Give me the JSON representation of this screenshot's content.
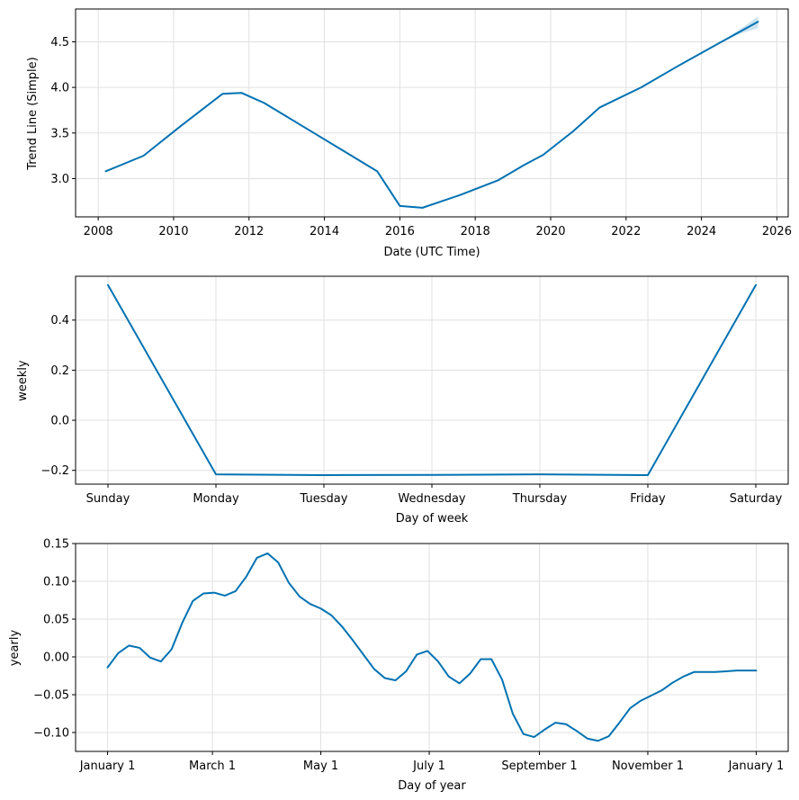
{
  "chart_data": [
    {
      "type": "line",
      "xlabel": "Date (UTC Time)",
      "ylabel": "Trend Line (Simple)",
      "x_ticks": [
        2008,
        2010,
        2012,
        2014,
        2016,
        2018,
        2020,
        2022,
        2024,
        2026
      ],
      "x_tick_labels": [
        "2008",
        "2010",
        "2012",
        "2014",
        "2016",
        "2018",
        "2020",
        "2022",
        "2024",
        "2026"
      ],
      "y_ticks": [
        3.0,
        3.5,
        4.0,
        4.5
      ],
      "y_tick_labels": [
        "3.0",
        "3.5",
        "4.0",
        "4.5"
      ],
      "xlim": [
        2007.4,
        2026.3
      ],
      "ylim": [
        2.58,
        4.86
      ],
      "grid": true,
      "x": [
        2008.2,
        2009.2,
        2010.2,
        2011.3,
        2011.8,
        2012.4,
        2013.4,
        2014.4,
        2015.4,
        2016.0,
        2016.6,
        2017.6,
        2018.6,
        2019.3,
        2019.8,
        2020.6,
        2021.3,
        2022.4,
        2023.4,
        2024.4,
        2025.5
      ],
      "y": [
        3.08,
        3.25,
        3.58,
        3.93,
        3.94,
        3.83,
        3.58,
        3.33,
        3.08,
        2.7,
        2.68,
        2.82,
        2.98,
        3.15,
        3.26,
        3.52,
        3.78,
        4.0,
        4.24,
        4.47,
        4.72
      ],
      "uncertainty": {
        "x": [
          2024.8,
          2025.1,
          2025.5
        ],
        "lower": [
          4.55,
          4.6,
          4.65
        ],
        "upper": [
          4.58,
          4.66,
          4.78
        ]
      }
    },
    {
      "type": "line",
      "xlabel": "Day of week",
      "ylabel": "weekly",
      "categories": [
        "Sunday",
        "Monday",
        "Tuesday",
        "Wednesday",
        "Thursday",
        "Friday",
        "Saturday"
      ],
      "values": [
        0.54,
        -0.216,
        -0.219,
        -0.218,
        -0.216,
        -0.219,
        0.54
      ],
      "y_ticks": [
        -0.2,
        0.0,
        0.2,
        0.4
      ],
      "y_tick_labels": [
        "−0.2",
        "0.0",
        "0.2",
        "0.4"
      ],
      "xlim": [
        -0.3,
        6.3
      ],
      "ylim": [
        -0.255,
        0.575
      ],
      "grid": true
    },
    {
      "type": "line",
      "xlabel": "Day of year",
      "ylabel": "yearly",
      "x_ticks": [
        0,
        59,
        120,
        181,
        243,
        304,
        365
      ],
      "x_tick_labels": [
        "January 1",
        "March 1",
        "May 1",
        "July 1",
        "September 1",
        "November 1",
        "January 1"
      ],
      "y_ticks": [
        -0.1,
        -0.05,
        0.0,
        0.05,
        0.1,
        0.15
      ],
      "y_tick_labels": [
        "−0.10",
        "−0.05",
        "0.00",
        "0.05",
        "0.10",
        "0.15"
      ],
      "xlim": [
        -18,
        383
      ],
      "ylim": [
        -0.125,
        0.15
      ],
      "grid": true,
      "x": [
        0,
        6,
        12,
        18,
        24,
        30,
        36,
        42,
        48,
        54,
        60,
        66,
        72,
        78,
        84,
        90,
        96,
        102,
        108,
        114,
        120,
        126,
        132,
        138,
        144,
        150,
        156,
        162,
        168,
        174,
        180,
        186,
        192,
        198,
        204,
        210,
        216,
        222,
        228,
        234,
        240,
        246,
        252,
        258,
        264,
        270,
        276,
        282,
        288,
        294,
        300,
        306,
        312,
        318,
        324,
        330,
        336,
        342,
        348,
        354,
        360,
        365
      ],
      "y": [
        -0.014,
        0.005,
        0.015,
        0.012,
        -0.001,
        -0.006,
        0.01,
        0.045,
        0.074,
        0.084,
        0.085,
        0.081,
        0.087,
        0.106,
        0.131,
        0.137,
        0.125,
        0.098,
        0.08,
        0.07,
        0.064,
        0.055,
        0.04,
        0.022,
        0.003,
        -0.016,
        -0.028,
        -0.031,
        -0.019,
        0.003,
        0.008,
        -0.006,
        -0.026,
        -0.035,
        -0.022,
        -0.003,
        -0.003,
        -0.03,
        -0.075,
        -0.102,
        -0.106,
        -0.096,
        -0.087,
        -0.089,
        -0.098,
        -0.108,
        -0.111,
        -0.105,
        -0.087,
        -0.068,
        -0.058,
        -0.051,
        -0.044,
        -0.034,
        -0.026,
        -0.02,
        -0.02,
        -0.02,
        -0.019,
        -0.018,
        -0.018,
        -0.018
      ]
    }
  ]
}
